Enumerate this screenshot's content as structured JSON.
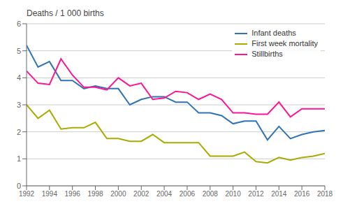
{
  "chart_data": {
    "type": "line",
    "y_label": "Deaths / 1 000 births",
    "x": [
      1992,
      1993,
      1994,
      1995,
      1996,
      1997,
      1998,
      1999,
      2000,
      2001,
      2002,
      2003,
      2004,
      2005,
      2006,
      2007,
      2008,
      2009,
      2010,
      2011,
      2012,
      2013,
      2014,
      2015,
      2016,
      2017,
      2018
    ],
    "series": [
      {
        "name": "Infant deaths",
        "color": "#2E74B5",
        "values": [
          5.2,
          4.4,
          4.6,
          3.9,
          3.9,
          3.6,
          3.7,
          3.6,
          3.6,
          3.0,
          3.2,
          3.3,
          3.3,
          3.1,
          3.1,
          2.7,
          2.7,
          2.6,
          2.3,
          2.4,
          2.4,
          1.7,
          2.2,
          1.75,
          1.9,
          2.0,
          2.05
        ]
      },
      {
        "name": "First week mortality",
        "color": "#AAAA00",
        "values": [
          3.0,
          2.5,
          2.8,
          2.1,
          2.15,
          2.15,
          2.35,
          1.75,
          1.75,
          1.65,
          1.65,
          1.9,
          1.6,
          1.6,
          1.6,
          1.6,
          1.1,
          1.1,
          1.1,
          1.25,
          0.9,
          0.85,
          1.05,
          0.95,
          1.05,
          1.1,
          1.2
        ]
      },
      {
        "name": "Stillbirths",
        "color": "#FF1493",
        "values": [
          4.25,
          3.8,
          3.75,
          4.7,
          4.1,
          3.65,
          3.65,
          3.55,
          4.0,
          3.7,
          3.8,
          3.2,
          3.25,
          3.5,
          3.45,
          3.2,
          3.4,
          3.2,
          2.7,
          2.7,
          2.65,
          2.65,
          3.1,
          2.55,
          2.85,
          2.85,
          2.85
        ]
      }
    ],
    "xlim": [
      1992,
      2018
    ],
    "xticks": [
      1992,
      1994,
      1996,
      1998,
      2000,
      2002,
      2004,
      2006,
      2008,
      2010,
      2012,
      2014,
      2016,
      2018
    ],
    "ylim": [
      0,
      6
    ],
    "yticks": [
      0,
      1,
      2,
      3,
      4,
      5,
      6
    ],
    "grid": true,
    "legend": "upper right"
  }
}
